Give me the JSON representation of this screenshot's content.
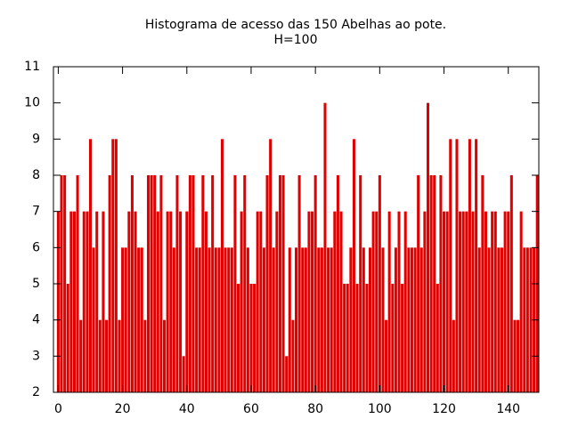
{
  "chart_data": {
    "type": "bar",
    "title": "Histograma de acesso das 150 Abelhas ao pote.",
    "subtitle": "H=100",
    "x": [
      0,
      1,
      2,
      3,
      4,
      5,
      6,
      7,
      8,
      9,
      10,
      11,
      12,
      13,
      14,
      15,
      16,
      17,
      18,
      19,
      20,
      21,
      22,
      23,
      24,
      25,
      26,
      27,
      28,
      29,
      30,
      31,
      32,
      33,
      34,
      35,
      36,
      37,
      38,
      39,
      40,
      41,
      42,
      43,
      44,
      45,
      46,
      47,
      48,
      49,
      50,
      51,
      52,
      53,
      54,
      55,
      56,
      57,
      58,
      59,
      60,
      61,
      62,
      63,
      64,
      65,
      66,
      67,
      68,
      69,
      70,
      71,
      72,
      73,
      74,
      75,
      76,
      77,
      78,
      79,
      80,
      81,
      82,
      83,
      84,
      85,
      86,
      87,
      88,
      89,
      90,
      91,
      92,
      93,
      94,
      95,
      96,
      97,
      98,
      99,
      100,
      101,
      102,
      103,
      104,
      105,
      106,
      107,
      108,
      109,
      110,
      111,
      112,
      113,
      114,
      115,
      116,
      117,
      118,
      119,
      120,
      121,
      122,
      123,
      124,
      125,
      126,
      127,
      128,
      129,
      130,
      131,
      132,
      133,
      134,
      135,
      136,
      137,
      138,
      139,
      140,
      141,
      142,
      143,
      144,
      145,
      146,
      147,
      148,
      149
    ],
    "values": [
      7,
      8,
      8,
      5,
      7,
      7,
      8,
      4,
      7,
      7,
      9,
      6,
      7,
      4,
      7,
      4,
      8,
      9,
      9,
      4,
      6,
      6,
      7,
      8,
      7,
      6,
      6,
      4,
      8,
      8,
      8,
      7,
      8,
      4,
      7,
      7,
      6,
      8,
      7,
      3,
      7,
      8,
      8,
      6,
      6,
      8,
      7,
      6,
      8,
      6,
      6,
      9,
      6,
      6,
      6,
      8,
      5,
      7,
      8,
      6,
      5,
      5,
      7,
      7,
      6,
      8,
      9,
      6,
      7,
      8,
      8,
      3,
      6,
      4,
      6,
      8,
      6,
      6,
      7,
      7,
      8,
      6,
      6,
      10,
      6,
      6,
      7,
      8,
      7,
      5,
      5,
      6,
      9,
      5,
      8,
      6,
      5,
      6,
      7,
      7,
      8,
      6,
      4,
      7,
      5,
      6,
      7,
      5,
      7,
      6,
      6,
      6,
      8,
      6,
      7,
      10,
      8,
      8,
      5,
      8,
      7,
      7,
      9,
      4,
      9,
      7,
      7,
      7,
      9,
      7,
      9,
      6,
      8,
      7,
      6,
      7,
      7,
      6,
      6,
      7,
      7,
      8,
      4,
      4,
      7,
      6,
      6,
      6,
      6,
      8
    ],
    "color": "#e00000",
    "xlim": [
      -1.5,
      149.5
    ],
    "xticks": [
      0,
      20,
      40,
      60,
      80,
      100,
      120,
      140
    ],
    "ylim": [
      2,
      11
    ],
    "yticks": [
      2,
      3,
      4,
      5,
      6,
      7,
      8,
      9,
      10,
      11
    ]
  }
}
